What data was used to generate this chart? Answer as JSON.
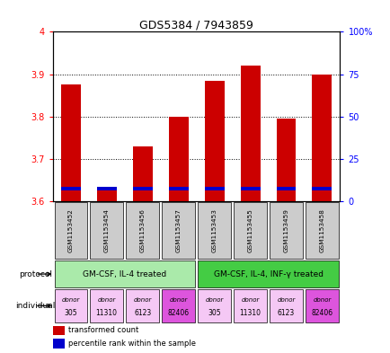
{
  "title": "GDS5384 / 7943859",
  "samples": [
    "GSM1153452",
    "GSM1153454",
    "GSM1153456",
    "GSM1153457",
    "GSM1153453",
    "GSM1153455",
    "GSM1153459",
    "GSM1153458"
  ],
  "red_values": [
    3.875,
    3.635,
    3.73,
    3.8,
    3.885,
    3.92,
    3.795,
    3.9
  ],
  "blue_values": [
    3.625,
    3.625,
    3.625,
    3.625,
    3.625,
    3.625,
    3.625,
    3.625
  ],
  "y_min": 3.6,
  "y_max": 4.0,
  "y_ticks": [
    3.6,
    3.7,
    3.8,
    3.9,
    4.0
  ],
  "y_tick_labels": [
    "3.6",
    "3.7",
    "3.8",
    "3.9",
    "4"
  ],
  "y_right_labels": [
    "0",
    "25",
    "50",
    "75",
    "100%"
  ],
  "protocol_labels": [
    "GM-CSF, IL-4 treated",
    "GM-CSF, IL-4, INF-γ treated"
  ],
  "individual_labels": [
    "donor\n305",
    "donor\n11310",
    "donor\n6123",
    "donor\n82406",
    "donor\n305",
    "donor\n11310",
    "donor\n6123",
    "donor\n82406"
  ],
  "individual_colors": [
    "#f5c8f5",
    "#f5c8f5",
    "#f5c8f5",
    "#dd55dd",
    "#f5c8f5",
    "#f5c8f5",
    "#f5c8f5",
    "#dd55dd"
  ],
  "protocol_color1": "#aaeaaa",
  "protocol_color2": "#44cc44",
  "sample_bg_color": "#cccccc",
  "bar_color_red": "#cc0000",
  "bar_color_blue": "#0000cc",
  "legend_red": "transformed count",
  "legend_blue": "percentile rank within the sample"
}
